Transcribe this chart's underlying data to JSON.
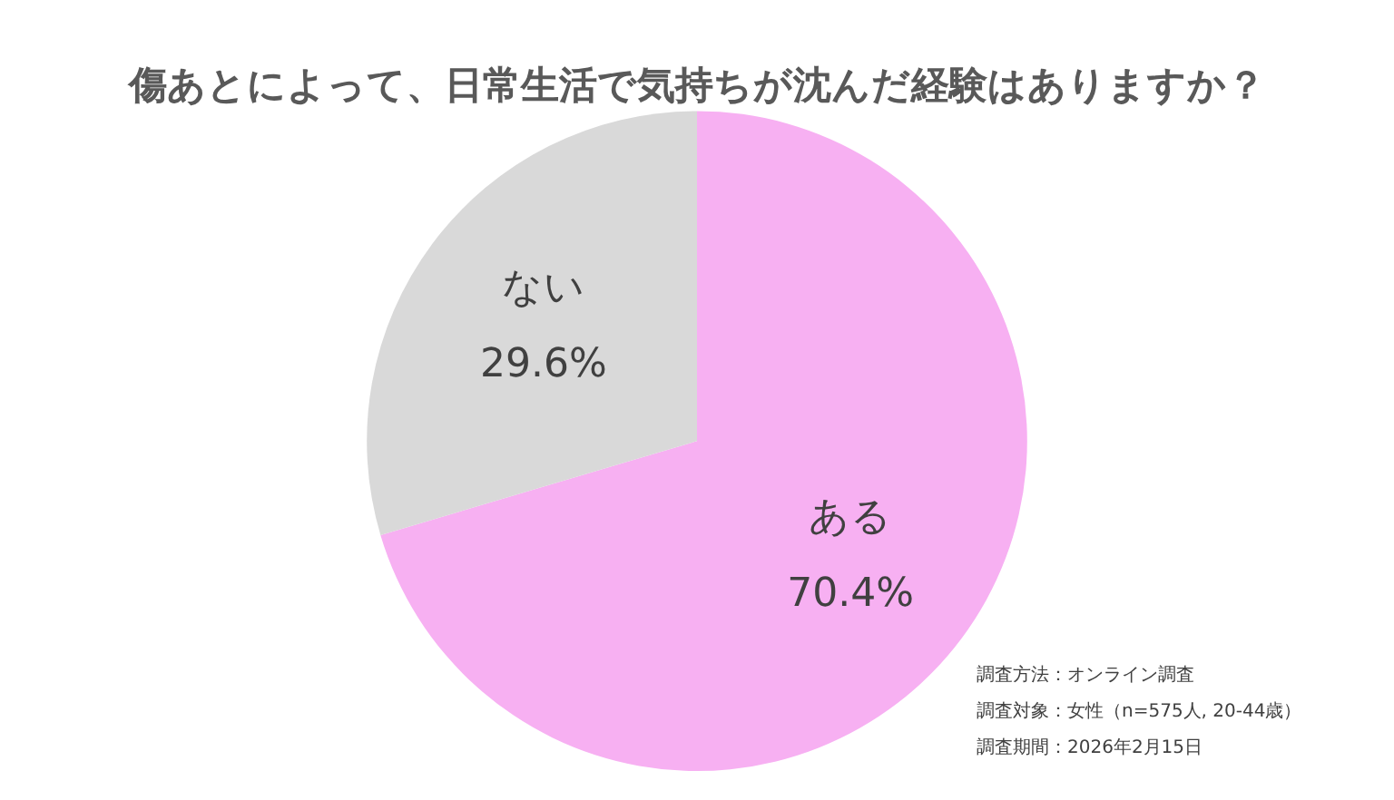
{
  "chart_data": {
    "type": "pie",
    "title": "傷あとによって、日常生活で気持ちが沈んだ経験はありますか？",
    "categories": [
      "ある",
      "ない"
    ],
    "values": [
      70.4,
      29.6
    ],
    "colors": [
      "#f7b0f2",
      "#d9d9d9"
    ],
    "value_labels": [
      "70.4%",
      "29.6%"
    ],
    "annotations": [
      "調査方法：オンライン調査",
      "調査対象：女性（n=575人, 20-44歳）",
      "調査期間：2026年2月15日"
    ]
  }
}
